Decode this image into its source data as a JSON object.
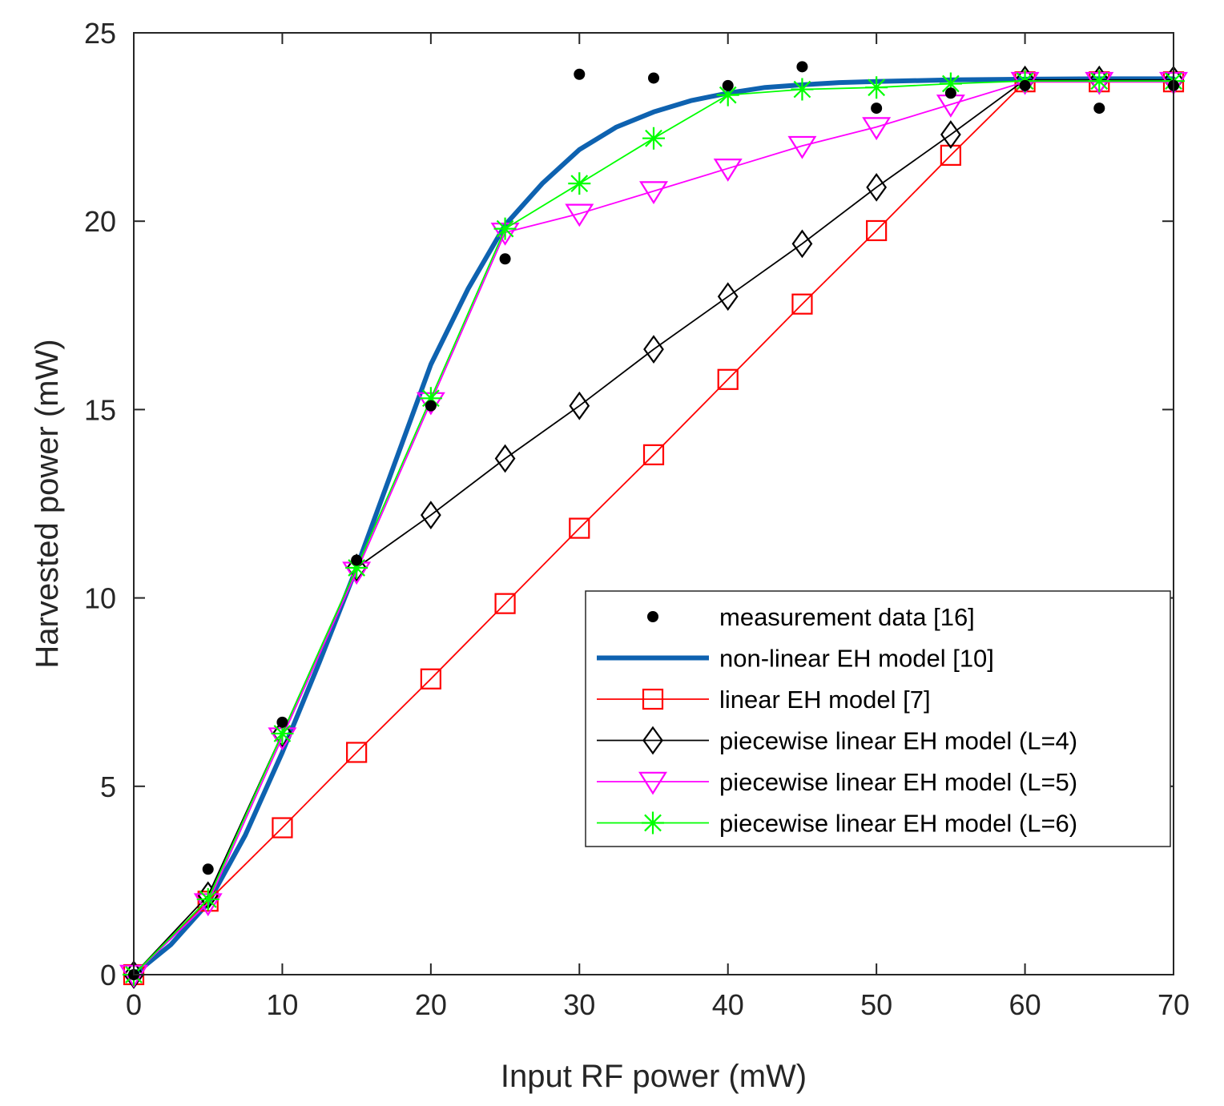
{
  "chart_data": {
    "type": "line",
    "title": "",
    "xlabel": "Input RF power (mW)",
    "ylabel": "Harvested power (mW)",
    "xlim": [
      0,
      70
    ],
    "ylim": [
      0,
      25
    ],
    "xticks": [
      0,
      10,
      20,
      30,
      40,
      50,
      60,
      70
    ],
    "yticks": [
      0,
      5,
      10,
      15,
      20,
      25
    ],
    "grid": false,
    "legend_position": "center-right",
    "series": [
      {
        "name": "measurement data [16]",
        "style": "dots",
        "color": "#000000",
        "x": [
          0,
          5,
          10,
          15,
          20,
          25,
          30,
          35,
          40,
          45,
          50,
          55,
          60,
          65,
          70
        ],
        "y": [
          0.0,
          2.8,
          6.7,
          11.0,
          15.1,
          19.0,
          23.9,
          23.8,
          23.6,
          24.1,
          23.0,
          23.4,
          23.6,
          23.0,
          23.6
        ]
      },
      {
        "name": "non-linear EH model [10]",
        "style": "thick-line",
        "color": "#0E62B0",
        "x": [
          0,
          2.5,
          5,
          7.5,
          10,
          12.5,
          15,
          17.5,
          20,
          22.5,
          25,
          27.5,
          30,
          32.5,
          35,
          37.5,
          40,
          42.5,
          45,
          47.5,
          50,
          55,
          60,
          65,
          70
        ],
        "y": [
          0.0,
          0.8,
          1.9,
          3.7,
          5.9,
          8.3,
          10.8,
          13.5,
          16.2,
          18.2,
          19.9,
          21.0,
          21.9,
          22.5,
          22.9,
          23.2,
          23.4,
          23.55,
          23.62,
          23.68,
          23.71,
          23.75,
          23.77,
          23.78,
          23.78
        ]
      },
      {
        "name": "linear EH model [7]",
        "style": "line-square",
        "color": "#FF0000",
        "x": [
          0,
          5,
          10,
          15,
          20,
          25,
          30,
          35,
          40,
          45,
          50,
          55,
          60,
          65,
          70
        ],
        "y": [
          0.0,
          1.95,
          3.9,
          5.9,
          7.85,
          9.85,
          11.85,
          13.8,
          15.8,
          17.8,
          19.75,
          21.75,
          23.7,
          23.7,
          23.7
        ]
      },
      {
        "name": "piecewise linear EH model (L=4)",
        "style": "line-diamond",
        "color": "#000000",
        "x": [
          0,
          5,
          10,
          15,
          20,
          25,
          30,
          35,
          40,
          45,
          50,
          55,
          60,
          65,
          70
        ],
        "y": [
          0.0,
          2.1,
          6.4,
          10.8,
          12.2,
          13.7,
          15.1,
          16.6,
          18.0,
          19.4,
          20.9,
          22.3,
          23.75,
          23.75,
          23.75
        ]
      },
      {
        "name": "piecewise linear EH model (L=5)",
        "style": "line-triangle-down",
        "color": "#FF00FF",
        "x": [
          0,
          5,
          10,
          15,
          20,
          25,
          30,
          35,
          40,
          45,
          50,
          55,
          60,
          65,
          70
        ],
        "y": [
          0.0,
          1.9,
          6.3,
          10.7,
          15.2,
          19.7,
          20.2,
          20.8,
          21.4,
          22.0,
          22.5,
          23.1,
          23.7,
          23.7,
          23.7
        ]
      },
      {
        "name": "piecewise linear EH model (L=6)",
        "style": "line-asterisk",
        "color": "#00FF00",
        "x": [
          0,
          5,
          10,
          15,
          20,
          25,
          30,
          35,
          40,
          45,
          50,
          55,
          60,
          65,
          70
        ],
        "y": [
          0.0,
          2.0,
          6.4,
          10.8,
          15.3,
          19.8,
          21.0,
          22.2,
          23.35,
          23.5,
          23.55,
          23.65,
          23.72,
          23.72,
          23.72
        ]
      }
    ]
  }
}
